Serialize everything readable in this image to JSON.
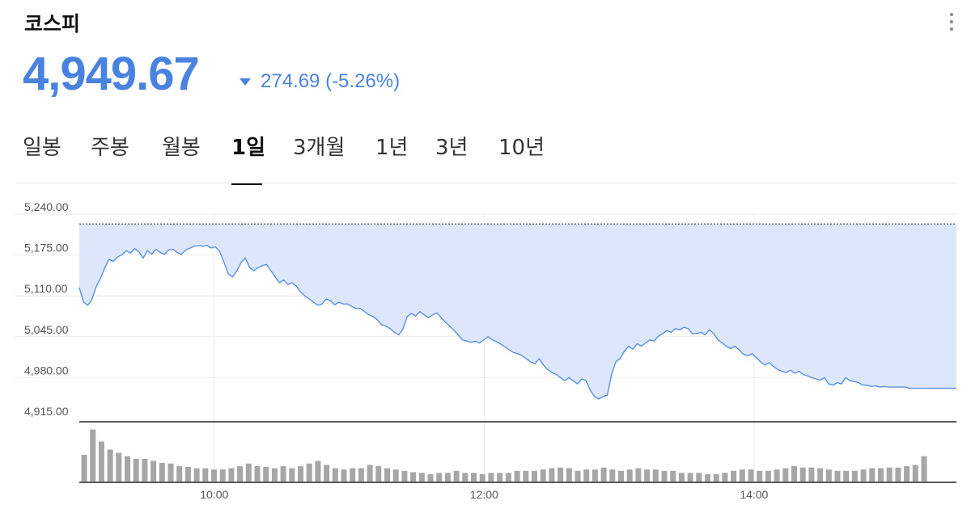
{
  "header": {
    "title": "코스피",
    "price": "4,949.67",
    "change": "274.69 (-5.26%)",
    "change_color": "#4a82e0"
  },
  "tabs": [
    {
      "label": "일봉",
      "active": false
    },
    {
      "label": "주봉",
      "active": false
    },
    {
      "label": "월봉",
      "active": false
    },
    {
      "label": "1일",
      "active": true
    },
    {
      "label": "3개월",
      "active": false
    },
    {
      "label": "1년",
      "active": false
    },
    {
      "label": "3년",
      "active": false
    },
    {
      "label": "10년",
      "active": false
    }
  ],
  "chart_data": {
    "type": "area",
    "y_ticks": [
      "5,240.00",
      "5,175.00",
      "5,110.00",
      "5,045.00",
      "4,980.00",
      "4,915.00"
    ],
    "ylim": [
      4915,
      5240
    ],
    "x_ticks": [
      "10:00",
      "12:00",
      "14:00"
    ],
    "x_range": [
      "09:00",
      "15:30"
    ],
    "previous_close": 5224.36,
    "line_color": "#5b8ee6",
    "fill_color": "#dce7fb",
    "volume_color": "#a6a6a6",
    "series": [
      {
        "values": [
          [
            0,
            5123
          ],
          [
            3,
            5100
          ],
          [
            6,
            5095
          ],
          [
            9,
            5105
          ],
          [
            12,
            5125
          ],
          [
            15,
            5138
          ],
          [
            18,
            5155
          ],
          [
            21,
            5168
          ],
          [
            24,
            5165
          ],
          [
            27,
            5172
          ],
          [
            30,
            5175
          ],
          [
            33,
            5182
          ],
          [
            36,
            5178
          ],
          [
            39,
            5185
          ],
          [
            42,
            5180
          ],
          [
            45,
            5170
          ],
          [
            48,
            5182
          ],
          [
            51,
            5176
          ],
          [
            54,
            5184
          ],
          [
            57,
            5179
          ],
          [
            60,
            5176
          ],
          [
            63,
            5183
          ],
          [
            66,
            5184
          ],
          [
            69,
            5179
          ],
          [
            72,
            5176
          ],
          [
            75,
            5183
          ],
          [
            78,
            5186
          ],
          [
            81,
            5189
          ],
          [
            84,
            5190
          ],
          [
            87,
            5189
          ],
          [
            90,
            5190
          ],
          [
            93,
            5186
          ],
          [
            96,
            5188
          ],
          [
            99,
            5180
          ],
          [
            102,
            5163
          ],
          [
            105,
            5145
          ],
          [
            108,
            5140
          ],
          [
            111,
            5150
          ],
          [
            114,
            5163
          ],
          [
            117,
            5170
          ],
          [
            120,
            5155
          ],
          [
            123,
            5150
          ],
          [
            126,
            5155
          ],
          [
            129,
            5158
          ],
          [
            132,
            5160
          ],
          [
            135,
            5150
          ],
          [
            138,
            5140
          ],
          [
            141,
            5131
          ],
          [
            144,
            5135
          ],
          [
            147,
            5128
          ],
          [
            150,
            5131
          ],
          [
            153,
            5125
          ],
          [
            156,
            5116
          ],
          [
            159,
            5110
          ],
          [
            162,
            5105
          ],
          [
            165,
            5100
          ],
          [
            168,
            5095
          ],
          [
            171,
            5097
          ],
          [
            174,
            5105
          ],
          [
            177,
            5102
          ],
          [
            180,
            5096
          ],
          [
            183,
            5100
          ],
          [
            186,
            5097
          ],
          [
            189,
            5097
          ],
          [
            192,
            5093
          ],
          [
            195,
            5090
          ],
          [
            198,
            5090
          ],
          [
            201,
            5085
          ],
          [
            204,
            5080
          ],
          [
            207,
            5077
          ],
          [
            210,
            5072
          ],
          [
            213,
            5064
          ],
          [
            216,
            5062
          ],
          [
            219,
            5058
          ],
          [
            222,
            5052
          ],
          [
            225,
            5048
          ],
          [
            228,
            5057
          ],
          [
            231,
            5077
          ],
          [
            234,
            5082
          ],
          [
            237,
            5078
          ],
          [
            240,
            5085
          ],
          [
            243,
            5080
          ],
          [
            246,
            5075
          ],
          [
            249,
            5080
          ],
          [
            252,
            5083
          ],
          [
            255,
            5075
          ],
          [
            258,
            5068
          ],
          [
            261,
            5062
          ],
          [
            264,
            5055
          ],
          [
            267,
            5048
          ],
          [
            270,
            5040
          ],
          [
            273,
            5038
          ],
          [
            276,
            5036
          ],
          [
            279,
            5038
          ],
          [
            282,
            5035
          ],
          [
            285,
            5040
          ],
          [
            288,
            5045
          ],
          [
            291,
            5040
          ],
          [
            294,
            5037
          ],
          [
            297,
            5033
          ],
          [
            300,
            5029
          ],
          [
            303,
            5024
          ],
          [
            306,
            5020
          ],
          [
            309,
            5018
          ],
          [
            312,
            5015
          ],
          [
            315,
            5010
          ],
          [
            318,
            5005
          ],
          [
            321,
            5002
          ],
          [
            324,
            5010
          ],
          [
            327,
            5000
          ],
          [
            330,
            4993
          ],
          [
            333,
            4988
          ],
          [
            336,
            4985
          ],
          [
            339,
            4980
          ],
          [
            342,
            4975
          ],
          [
            345,
            4980
          ],
          [
            348,
            4975
          ],
          [
            351,
            4970
          ],
          [
            354,
            4978
          ],
          [
            357,
            4975
          ],
          [
            360,
            4960
          ],
          [
            363,
            4950
          ],
          [
            366,
            4946
          ],
          [
            369,
            4950
          ],
          [
            372,
            4952
          ],
          [
            375,
            4985
          ],
          [
            378,
            5005
          ],
          [
            381,
            5010
          ],
          [
            384,
            5022
          ],
          [
            387,
            5030
          ],
          [
            390,
            5025
          ],
          [
            393,
            5034
          ],
          [
            396,
            5030
          ],
          [
            399,
            5035
          ],
          [
            402,
            5040
          ],
          [
            405,
            5038
          ],
          [
            408,
            5046
          ],
          [
            411,
            5050
          ],
          [
            414,
            5055
          ],
          [
            417,
            5052
          ],
          [
            420,
            5058
          ],
          [
            423,
            5056
          ],
          [
            426,
            5060
          ],
          [
            429,
            5058
          ],
          [
            432,
            5050
          ],
          [
            435,
            5050
          ],
          [
            438,
            5052
          ],
          [
            441,
            5048
          ],
          [
            444,
            5056
          ],
          [
            447,
            5050
          ],
          [
            450,
            5040
          ],
          [
            453,
            5035
          ],
          [
            456,
            5030
          ],
          [
            459,
            5026
          ],
          [
            462,
            5030
          ],
          [
            465,
            5024
          ],
          [
            468,
            5017
          ],
          [
            471,
            5015
          ],
          [
            474,
            5018
          ],
          [
            477,
            5012
          ],
          [
            480,
            5005
          ],
          [
            483,
            5000
          ],
          [
            486,
            5004
          ],
          [
            489,
            4998
          ],
          [
            492,
            4993
          ],
          [
            495,
            4990
          ],
          [
            498,
            4988
          ],
          [
            501,
            4992
          ],
          [
            504,
            4987
          ],
          [
            507,
            4990
          ],
          [
            510,
            4985
          ],
          [
            513,
            4983
          ],
          [
            516,
            4980
          ],
          [
            519,
            4978
          ],
          [
            522,
            4976
          ],
          [
            525,
            4980
          ],
          [
            528,
            4970
          ],
          [
            531,
            4968
          ],
          [
            534,
            4972
          ],
          [
            537,
            4970
          ],
          [
            540,
            4980
          ],
          [
            543,
            4975
          ],
          [
            546,
            4974
          ],
          [
            549,
            4972
          ],
          [
            552,
            4968
          ],
          [
            555,
            4968
          ],
          [
            558,
            4966
          ],
          [
            561,
            4967
          ],
          [
            564,
            4965
          ],
          [
            567,
            4966
          ],
          [
            570,
            4965
          ],
          [
            573,
            4965
          ],
          [
            576,
            4965
          ],
          [
            579,
            4965
          ],
          [
            582,
            4965
          ],
          [
            585,
            4963
          ],
          [
            588,
            4963
          ],
          [
            591,
            4963
          ],
          [
            594,
            4963
          ],
          [
            597,
            4963
          ],
          [
            600,
            4963
          ],
          [
            603,
            4963
          ],
          [
            606,
            4963
          ],
          [
            609,
            4963
          ],
          [
            612,
            4963
          ],
          [
            615,
            4963
          ],
          [
            618,
            4963
          ]
        ]
      }
    ],
    "volume": [
      40,
      78,
      60,
      48,
      43,
      38,
      34,
      34,
      31,
      28,
      27,
      23,
      22,
      20,
      20,
      18,
      18,
      20,
      23,
      27,
      23,
      22,
      20,
      23,
      20,
      23,
      27,
      31,
      25,
      20,
      18,
      20,
      20,
      25,
      23,
      20,
      18,
      16,
      14,
      13,
      11,
      13,
      13,
      16,
      13,
      13,
      11,
      13,
      13,
      13,
      16,
      16,
      16,
      18,
      20,
      21,
      20,
      16,
      18,
      18,
      21,
      18,
      16,
      18,
      20,
      18,
      18,
      16,
      16,
      13,
      13,
      13,
      11,
      11,
      13,
      16,
      18,
      18,
      16,
      16,
      18,
      20,
      23,
      21,
      21,
      20,
      18,
      16,
      16,
      16,
      18,
      20,
      20,
      21,
      21,
      23,
      25,
      38
    ]
  }
}
